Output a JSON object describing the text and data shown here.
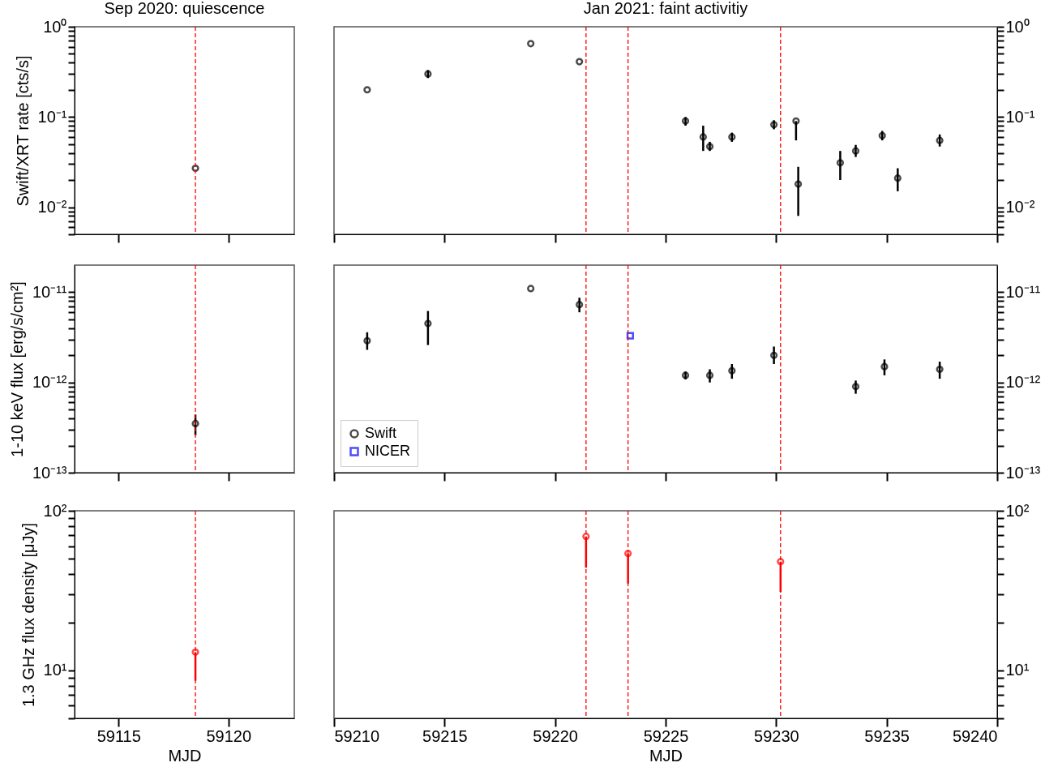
{
  "chart_data": [
    {
      "type": "scatter",
      "title": "Sep 2020: quiescence",
      "ylabel": "Swift/XRT rate [cts/s]",
      "x": [
        59118.5
      ],
      "log": true,
      "grid": false,
      "marker": "circle",
      "tick_labels": "y",
      "xlim": [
        59113,
        59123
      ],
      "xticks": [
        59115,
        59120
      ],
      "ylim": [
        0.005,
        1
      ],
      "yticks": [
        {
          "value": 0.005,
          "label": null
        },
        {
          "value": 0.006,
          "label": null
        },
        {
          "value": 0.007,
          "label": null
        },
        {
          "value": 0.008,
          "label": null
        },
        {
          "value": 0.009,
          "label": null
        },
        {
          "value": 0.01,
          "label": "10⁻²"
        },
        {
          "value": 0.02,
          "label": null
        },
        {
          "value": 0.03,
          "label": null
        },
        {
          "value": 0.04,
          "label": null
        },
        {
          "value": 0.05,
          "label": null
        },
        {
          "value": 0.06,
          "label": null
        },
        {
          "value": 0.07,
          "label": null
        },
        {
          "value": 0.08,
          "label": null
        },
        {
          "value": 0.09,
          "label": null
        },
        {
          "value": 0.1,
          "label": "10⁻¹"
        },
        {
          "value": 0.2,
          "label": null
        },
        {
          "value": 0.3,
          "label": null
        },
        {
          "value": 0.4,
          "label": null
        },
        {
          "value": 0.5,
          "label": null
        },
        {
          "value": 0.6,
          "label": null
        },
        {
          "value": 0.7,
          "label": null
        },
        {
          "value": 0.8,
          "label": null
        },
        {
          "value": 0.9,
          "label": null
        },
        {
          "value": 1,
          "label": "10⁰"
        }
      ],
      "ref_lines": [
        {
          "axis": "x",
          "value": 59118.5,
          "color": "#ff0000",
          "line_style": "dashed"
        }
      ],
      "series": [
        {
          "color": "#000000",
          "values": [
            0.027
          ]
        }
      ]
    },
    {
      "type": "scatter",
      "title": "Jan 2021: faint activitiy",
      "log": "y2",
      "grid": false,
      "marker": "circle",
      "tick_labels": "y",
      "xlim": [
        59210,
        59240
      ],
      "xticks": [
        59210,
        59215,
        59220,
        59225,
        59230,
        59235,
        59240
      ],
      "y2lim": [
        0.005,
        1
      ],
      "y2ticks": [
        {
          "value": 0.005,
          "label": null
        },
        {
          "value": 0.006,
          "label": null
        },
        {
          "value": 0.007,
          "label": null
        },
        {
          "value": 0.008,
          "label": null
        },
        {
          "value": 0.009,
          "label": null
        },
        {
          "value": 0.01,
          "label": "10⁻²"
        },
        {
          "value": 0.02,
          "label": null
        },
        {
          "value": 0.03,
          "label": null
        },
        {
          "value": 0.04,
          "label": null
        },
        {
          "value": 0.05,
          "label": null
        },
        {
          "value": 0.06,
          "label": null
        },
        {
          "value": 0.07,
          "label": null
        },
        {
          "value": 0.08,
          "label": null
        },
        {
          "value": 0.09,
          "label": null
        },
        {
          "value": 0.1,
          "label": "10⁻¹"
        },
        {
          "value": 0.2,
          "label": null
        },
        {
          "value": 0.3,
          "label": null
        },
        {
          "value": 0.4,
          "label": null
        },
        {
          "value": 0.5,
          "label": null
        },
        {
          "value": 0.6,
          "label": null
        },
        {
          "value": 0.7,
          "label": null
        },
        {
          "value": 0.8,
          "label": null
        },
        {
          "value": 0.9,
          "label": null
        },
        {
          "value": 1,
          "label": "10⁰"
        }
      ],
      "ref_lines": [
        {
          "axis": "x",
          "value": 59221.4,
          "color": "#ff0000",
          "line_style": "dashed"
        },
        {
          "axis": "x",
          "value": 59223.3,
          "color": "#ff0000",
          "line_style": "dashed"
        },
        {
          "axis": "x",
          "value": 59230.2,
          "color": "#ff0000",
          "line_style": "dashed"
        }
      ],
      "x": [
        59211.5,
        59214.25,
        59218.9,
        59221.1,
        59225.9,
        59226.7,
        59227.0,
        59228.0,
        59229.9,
        59230.9,
        59231.0,
        59232.9,
        59233.6,
        59234.8,
        59235.5,
        59237.4
      ],
      "series": [
        {
          "color": "#000000",
          "axis": "y2",
          "values": [
            0.2,
            0.3,
            0.65,
            0.41,
            0.09,
            0.06,
            0.047,
            0.06,
            0.082,
            0.09,
            0.018,
            0.031,
            0.042,
            0.062,
            0.021,
            0.055
          ],
          "errors": [
            null,
            [
              0.27,
              0.33
            ],
            null,
            null,
            [
              0.08,
              0.1
            ],
            [
              0.042,
              0.08
            ],
            [
              0.042,
              0.053
            ],
            [
              0.053,
              0.067
            ],
            [
              0.073,
              0.092
            ],
            [
              0.055,
              0.09
            ],
            [
              0.008,
              0.028
            ],
            [
              0.02,
              0.042
            ],
            [
              0.036,
              0.049
            ],
            [
              0.055,
              0.07
            ],
            [
              0.015,
              0.027
            ],
            [
              0.047,
              0.064
            ]
          ]
        }
      ]
    },
    {
      "type": "scatter",
      "ylabel": "1-10 keV flux [erg/s/cm²]",
      "x": [
        59118.5
      ],
      "log": true,
      "grid": false,
      "marker": "circle",
      "tick_labels": "y",
      "xlim": [
        59113,
        59123
      ],
      "xticks": [
        59115,
        59120
      ],
      "ylim": [
        1e-13,
        2e-11
      ],
      "yticks": [
        {
          "value": 1e-13,
          "label": "10⁻¹³"
        },
        {
          "value": 2e-13,
          "label": null
        },
        {
          "value": 3e-13,
          "label": null
        },
        {
          "value": 4e-13,
          "label": null
        },
        {
          "value": 5e-13,
          "label": null
        },
        {
          "value": 6e-13,
          "label": null
        },
        {
          "value": 7e-13,
          "label": null
        },
        {
          "value": 8e-13,
          "label": null
        },
        {
          "value": 9e-13,
          "label": null
        },
        {
          "value": 1e-12,
          "label": "10⁻¹²"
        },
        {
          "value": 2e-12,
          "label": null
        },
        {
          "value": 3e-12,
          "label": null
        },
        {
          "value": 4e-12,
          "label": null
        },
        {
          "value": 5e-12,
          "label": null
        },
        {
          "value": 6e-12,
          "label": null
        },
        {
          "value": 7e-12,
          "label": null
        },
        {
          "value": 8e-12,
          "label": null
        },
        {
          "value": 9e-12,
          "label": null
        },
        {
          "value": 1e-11,
          "label": "10⁻¹¹"
        }
      ],
      "ref_lines": [
        {
          "axis": "x",
          "value": 59118.5,
          "color": "#ff0000",
          "line_style": "dashed"
        }
      ],
      "series": [
        {
          "color": "#000000",
          "values": [
            3.5e-13
          ],
          "errors": [
            [
              2.6e-13,
              4.4e-13
            ]
          ]
        }
      ]
    },
    {
      "type": "scatter",
      "log": "y2",
      "grid": false,
      "marker": "circle",
      "tick_labels": "y",
      "legend": "bottom left",
      "xlim": [
        59210,
        59240
      ],
      "xticks": [
        59210,
        59215,
        59220,
        59225,
        59230,
        59235,
        59240
      ],
      "y2lim": [
        1e-13,
        2e-11
      ],
      "y2ticks": [
        {
          "value": 1e-13,
          "label": "10⁻¹³"
        },
        {
          "value": 2e-13,
          "label": null
        },
        {
          "value": 3e-13,
          "label": null
        },
        {
          "value": 4e-13,
          "label": null
        },
        {
          "value": 5e-13,
          "label": null
        },
        {
          "value": 6e-13,
          "label": null
        },
        {
          "value": 7e-13,
          "label": null
        },
        {
          "value": 8e-13,
          "label": null
        },
        {
          "value": 9e-13,
          "label": null
        },
        {
          "value": 1e-12,
          "label": "10⁻¹²"
        },
        {
          "value": 2e-12,
          "label": null
        },
        {
          "value": 3e-12,
          "label": null
        },
        {
          "value": 4e-12,
          "label": null
        },
        {
          "value": 5e-12,
          "label": null
        },
        {
          "value": 6e-12,
          "label": null
        },
        {
          "value": 7e-12,
          "label": null
        },
        {
          "value": 8e-12,
          "label": null
        },
        {
          "value": 9e-12,
          "label": null
        },
        {
          "value": 1e-11,
          "label": "10⁻¹¹"
        }
      ],
      "ref_lines": [
        {
          "axis": "x",
          "value": 59221.4,
          "color": "#ff0000",
          "line_style": "dashed"
        },
        {
          "axis": "x",
          "value": 59223.3,
          "color": "#ff0000",
          "line_style": "dashed"
        },
        {
          "axis": "x",
          "value": 59230.2,
          "color": "#ff0000",
          "line_style": "dashed"
        }
      ],
      "series": [
        {
          "name": "Swift",
          "color": "#000000",
          "axis": "y2",
          "x": [
            59211.5,
            59214.25,
            59218.9,
            59221.1,
            59225.9,
            59227.0,
            59228.0,
            59229.9,
            59233.6,
            59234.9,
            59237.4
          ],
          "values": [
            2.9e-12,
            4.5e-12,
            1.1e-11,
            7.3e-12,
            1.2e-12,
            1.2e-12,
            1.35e-12,
            2e-12,
            9e-13,
            1.5e-12,
            1.4e-12
          ],
          "errors": [
            [
              2.3e-12,
              3.6e-12
            ],
            [
              2.6e-12,
              6.2e-12
            ],
            null,
            [
              6e-12,
              8.7e-12
            ],
            [
              1.08e-12,
              1.32e-12
            ],
            [
              1e-12,
              1.4e-12
            ],
            [
              1.1e-12,
              1.6e-12
            ],
            [
              1.6e-12,
              2.5e-12
            ],
            [
              7.5e-13,
              1.05e-12
            ],
            [
              1.2e-12,
              1.8e-12
            ],
            [
              1.1e-12,
              1.7e-12
            ]
          ]
        },
        {
          "name": "NICER",
          "color": "#0000ff",
          "axis": "y2",
          "marker": "square",
          "x": [
            59223.4
          ],
          "values": [
            3.3e-12
          ]
        }
      ]
    },
    {
      "type": "scatter",
      "ylabel": "1.3 GHz flux density [μJy]",
      "xlabel": "MJD",
      "x": [
        59118.5
      ],
      "log": true,
      "grid": false,
      "marker": "circle",
      "xlim": [
        59113,
        59123
      ],
      "xticks": [
        59115,
        59120
      ],
      "ylim": [
        5,
        100
      ],
      "yticks": [
        {
          "value": 5,
          "label": null
        },
        {
          "value": 6,
          "label": null
        },
        {
          "value": 7,
          "label": null
        },
        {
          "value": 8,
          "label": null
        },
        {
          "value": 9,
          "label": null
        },
        {
          "value": 10,
          "label": "10¹"
        },
        {
          "value": 20,
          "label": null
        },
        {
          "value": 30,
          "label": null
        },
        {
          "value": 40,
          "label": null
        },
        {
          "value": 50,
          "label": null
        },
        {
          "value": 60,
          "label": null
        },
        {
          "value": 70,
          "label": null
        },
        {
          "value": 80,
          "label": null
        },
        {
          "value": 90,
          "label": null
        },
        {
          "value": 100,
          "label": "10²"
        }
      ],
      "ref_lines": [
        {
          "axis": "x",
          "value": 59118.5,
          "color": "#ff0000",
          "line_style": "dashed"
        }
      ],
      "series": [
        {
          "color": "#ff0000",
          "values": [
            13
          ],
          "errors": [
            [
              8.6,
              13
            ]
          ]
        }
      ]
    },
    {
      "type": "scatter",
      "xlabel": "MJD",
      "log": "y2",
      "grid": false,
      "marker": "circle",
      "xlim": [
        59210,
        59240
      ],
      "xticks": [
        59210,
        59215,
        59220,
        59225,
        59230,
        59235,
        59240
      ],
      "y2lim": [
        5,
        100
      ],
      "y2ticks": [
        {
          "value": 5,
          "label": null
        },
        {
          "value": 6,
          "label": null
        },
        {
          "value": 7,
          "label": null
        },
        {
          "value": 8,
          "label": null
        },
        {
          "value": 9,
          "label": null
        },
        {
          "value": 10,
          "label": "10¹"
        },
        {
          "value": 20,
          "label": null
        },
        {
          "value": 30,
          "label": null
        },
        {
          "value": 40,
          "label": null
        },
        {
          "value": 50,
          "label": null
        },
        {
          "value": 60,
          "label": null
        },
        {
          "value": 70,
          "label": null
        },
        {
          "value": 80,
          "label": null
        },
        {
          "value": 90,
          "label": null
        },
        {
          "value": 100,
          "label": "10²"
        }
      ],
      "ref_lines": [
        {
          "axis": "x",
          "value": 59221.4,
          "color": "#ff0000",
          "line_style": "dashed"
        },
        {
          "axis": "x",
          "value": 59223.3,
          "color": "#ff0000",
          "line_style": "dashed"
        },
        {
          "axis": "x",
          "value": 59230.2,
          "color": "#ff0000",
          "line_style": "dashed"
        }
      ],
      "x": [
        59221.4,
        59223.3,
        59230.2
      ],
      "series": [
        {
          "color": "#ff0000",
          "axis": "y2",
          "values": [
            69,
            54,
            48
          ],
          "errors": [
            [
              44,
              69
            ],
            [
              35,
              54
            ],
            [
              31,
              48
            ]
          ]
        }
      ]
    }
  ]
}
